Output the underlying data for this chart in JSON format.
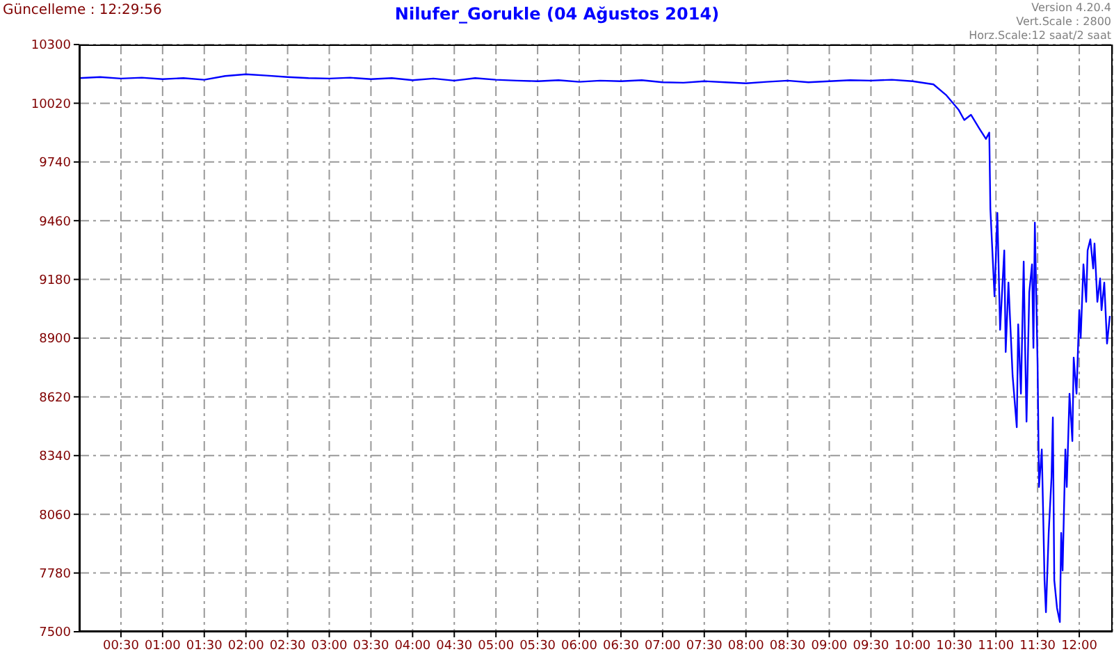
{
  "chart_data": {
    "type": "line",
    "title": "Nilufer_Gorukle (04 Ağustos 2014)",
    "annotations": [
      "Güncelleme : 12:29:56",
      "Version 4.20.4",
      "Vert.Scale : 2800",
      "Horz.Scale:12 saat/2 saat"
    ],
    "x": [
      0,
      0.25,
      0.5,
      0.75,
      1,
      1.25,
      1.5,
      1.75,
      2,
      2.25,
      2.5,
      2.75,
      3,
      3.25,
      3.5,
      3.75,
      4,
      4.25,
      4.5,
      4.75,
      5,
      5.25,
      5.5,
      5.75,
      6,
      6.25,
      6.5,
      6.75,
      7,
      7.25,
      7.5,
      7.75,
      8,
      8.25,
      8.5,
      8.75,
      9,
      9.25,
      9.5,
      9.75,
      10,
      10.25,
      10.4,
      10.55,
      10.62,
      10.7,
      10.8,
      10.88,
      10.92,
      10.933,
      10.983,
      11.017,
      11.05,
      11.1,
      11.117,
      11.15,
      11.2,
      11.25,
      11.267,
      11.3,
      11.333,
      11.35,
      11.367,
      11.4,
      11.433,
      11.45,
      11.467,
      11.5,
      11.517,
      11.55,
      11.567,
      11.583,
      11.6,
      11.633,
      11.667,
      11.683,
      11.7,
      11.733,
      11.767,
      11.783,
      11.8,
      11.833,
      11.85,
      11.883,
      11.917,
      11.933,
      11.967,
      12,
      12.017,
      12.05,
      12.083,
      12.1,
      12.133,
      12.167,
      12.183,
      12.217,
      12.25,
      12.267,
      12.3,
      12.333,
      12.367
    ],
    "series": [
      {
        "color": "#0000ff",
        "values": [
          10140,
          10145,
          10138,
          10142,
          10135,
          10140,
          10132,
          10150,
          10158,
          10152,
          10145,
          10140,
          10138,
          10142,
          10135,
          10140,
          10130,
          10138,
          10128,
          10140,
          10132,
          10128,
          10125,
          10130,
          10122,
          10128,
          10125,
          10130,
          10120,
          10118,
          10125,
          10120,
          10115,
          10122,
          10128,
          10120,
          10125,
          10130,
          10128,
          10132,
          10125,
          10110,
          10060,
          9990,
          9940,
          9965,
          9900,
          9850,
          9880,
          9517,
          9099,
          9497,
          8940,
          9318,
          8834,
          9165,
          8721,
          8475,
          8966,
          8635,
          9265,
          8854,
          8502,
          9119,
          9252,
          8854,
          9451,
          8767,
          8190,
          8369,
          8057,
          7746,
          7593,
          7971,
          8237,
          8522,
          7746,
          7613,
          7546,
          7971,
          7792,
          8369,
          8190,
          8635,
          8409,
          8807,
          8635,
          9033,
          8900,
          9252,
          9073,
          9318,
          9371,
          9232,
          9351,
          9073,
          9185,
          9033,
          9165,
          8874,
          9006
        ]
      }
    ],
    "xlim": [
      0,
      12.4
    ],
    "xticks": [
      {
        "value": 0.5,
        "label": "00:30"
      },
      {
        "value": 1,
        "label": "01:00"
      },
      {
        "value": 1.5,
        "label": "01:30"
      },
      {
        "value": 2,
        "label": "02:00"
      },
      {
        "value": 2.5,
        "label": "02:30"
      },
      {
        "value": 3,
        "label": "03:00"
      },
      {
        "value": 3.5,
        "label": "03:30"
      },
      {
        "value": 4,
        "label": "04:00"
      },
      {
        "value": 4.5,
        "label": "04:30"
      },
      {
        "value": 5,
        "label": "05:00"
      },
      {
        "value": 5.5,
        "label": "05:30"
      },
      {
        "value": 6,
        "label": "06:00"
      },
      {
        "value": 6.5,
        "label": "06:30"
      },
      {
        "value": 7,
        "label": "07:00"
      },
      {
        "value": 7.5,
        "label": "07:30"
      },
      {
        "value": 8,
        "label": "08:00"
      },
      {
        "value": 8.5,
        "label": "08:30"
      },
      {
        "value": 9,
        "label": "09:00"
      },
      {
        "value": 9.5,
        "label": "09:30"
      },
      {
        "value": 10,
        "label": "10:00"
      },
      {
        "value": 10.5,
        "label": "10:30"
      },
      {
        "value": 11,
        "label": "11:00"
      },
      {
        "value": 11.5,
        "label": "11:30"
      },
      {
        "value": 12,
        "label": "12:00"
      }
    ],
    "ylim": [
      7500,
      10300
    ],
    "yticks": [
      7500,
      7780,
      8060,
      8340,
      8620,
      8900,
      9180,
      9460,
      9740,
      10020,
      10300
    ],
    "grid": true,
    "marker": "none",
    "line_style": "solid"
  }
}
